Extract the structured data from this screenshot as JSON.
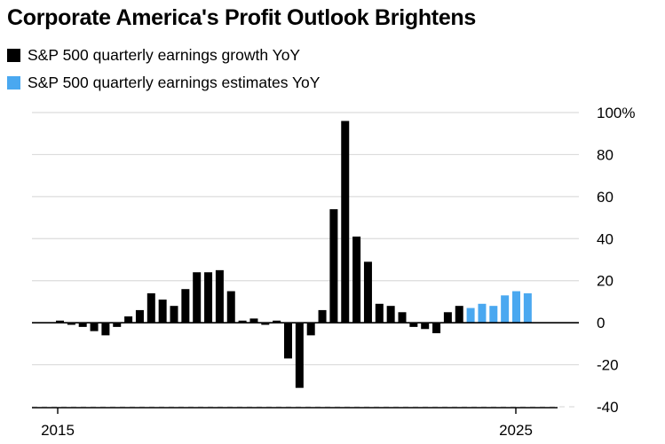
{
  "title": "Corporate America's Profit Outlook Brightens",
  "colors": {
    "actual": "#000000",
    "estimate": "#4aa8f0",
    "grid": "#dcdcdc",
    "axis": "#000000"
  },
  "chart_data": {
    "type": "bar",
    "title": "Corporate America's Profit Outlook Brightens",
    "xlabel": "",
    "ylabel": "",
    "ylim": [
      -40,
      100
    ],
    "yticks": [
      100,
      80,
      60,
      40,
      20,
      0,
      -20,
      -40
    ],
    "ytick_labels": [
      "100%",
      "80",
      "60",
      "40",
      "20",
      "0",
      "-20",
      "-40"
    ],
    "xtick_labels": [
      "2015",
      "2025"
    ],
    "legend": {
      "placement": "top-left"
    },
    "series": [
      {
        "name": "S&P 500 quarterly earnings growth YoY",
        "color": "#000000",
        "values": [
          1,
          -1,
          -2,
          -4,
          -6,
          -2,
          3,
          6,
          14,
          11,
          8,
          16,
          24,
          24,
          25,
          15,
          1,
          2,
          -1,
          1,
          -17,
          -31,
          -6,
          6,
          54,
          96,
          41,
          29,
          9,
          8,
          5,
          -2,
          -3,
          -5,
          5,
          8
        ]
      },
      {
        "name": "S&P 500 quarterly earnings estimates YoY",
        "color": "#4aa8f0",
        "values": [
          7,
          9,
          8,
          13,
          15,
          14
        ]
      }
    ]
  }
}
